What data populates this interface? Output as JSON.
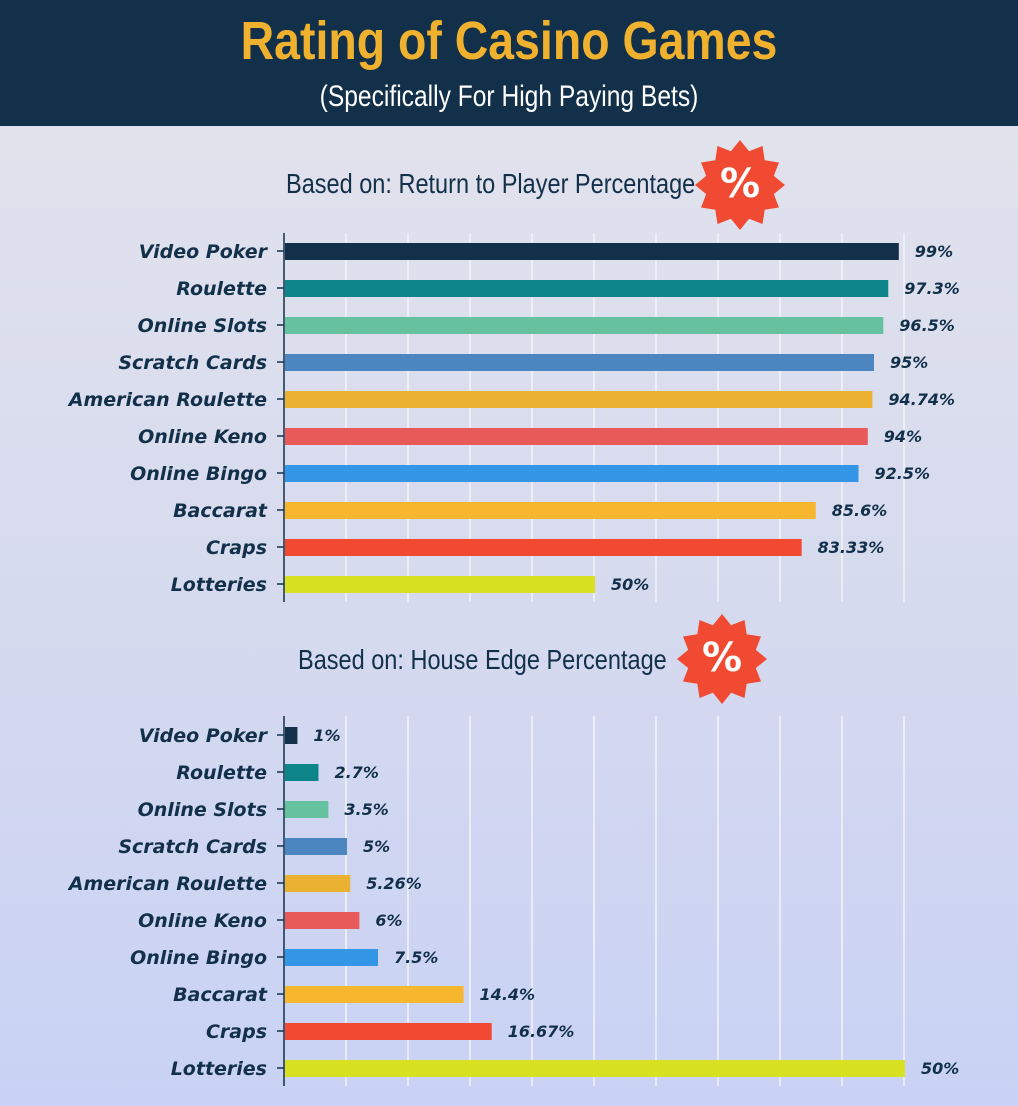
{
  "header": {
    "title": "Rating of Casino Games",
    "subtitle": "(Specifically For High Paying Bets)",
    "background": "#12304a",
    "title_color": "#f0b22e"
  },
  "badge": {
    "symbol": "%",
    "color": "#f04a33"
  },
  "chart_data": [
    {
      "type": "bar",
      "orientation": "horizontal",
      "title": "Based on: Return to Player Percentage",
      "categories": [
        "Video Poker",
        "Roulette",
        "Online Slots",
        "Scratch Cards",
        "American Roulette",
        "Online Keno",
        "Online Bingo",
        "Baccarat",
        "Craps",
        "Lotteries"
      ],
      "values": [
        99,
        97.3,
        96.5,
        95,
        94.74,
        94,
        92.5,
        85.6,
        83.33,
        50
      ],
      "value_labels": [
        "99%",
        "97.3%",
        "96.5%",
        "95%",
        "94.74%",
        "94%",
        "92.5%",
        "85.6%",
        "83.33%",
        "50%"
      ],
      "colors": [
        "#12304a",
        "#0e8589",
        "#66c29e",
        "#4b86c0",
        "#ebb130",
        "#e85a5a",
        "#3396e6",
        "#f6b62e",
        "#f24a32",
        "#d8e022"
      ],
      "xlim": [
        0,
        100
      ],
      "grid": true
    },
    {
      "type": "bar",
      "orientation": "horizontal",
      "title": "Based on: House Edge Percentage",
      "categories": [
        "Video Poker",
        "Roulette",
        "Online Slots",
        "Scratch Cards",
        "American Roulette",
        "Online Keno",
        "Online Bingo",
        "Baccarat",
        "Craps",
        "Lotteries"
      ],
      "values": [
        1,
        2.7,
        3.5,
        5,
        5.26,
        6,
        7.5,
        14.4,
        16.67,
        50
      ],
      "value_labels": [
        "1%",
        "2.7%",
        "3.5%",
        "5%",
        "5.26%",
        "6%",
        "7.5%",
        "14.4%",
        "16.67%",
        "50%"
      ],
      "colors": [
        "#12304a",
        "#0e8589",
        "#66c29e",
        "#4b86c0",
        "#ebb130",
        "#e85a5a",
        "#3396e6",
        "#f6b62e",
        "#f24a32",
        "#d8e022"
      ],
      "xlim": [
        0,
        50
      ],
      "grid": true
    }
  ]
}
